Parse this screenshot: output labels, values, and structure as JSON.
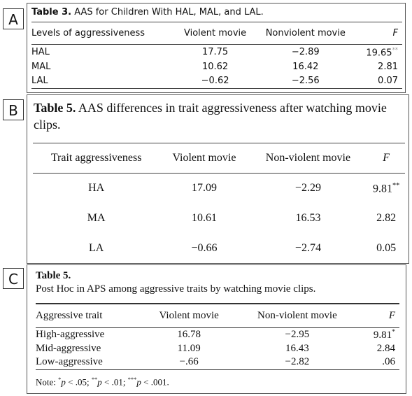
{
  "panels": [
    {
      "label": "A",
      "title_bold": "Table 3.",
      "title": "AAS for Children With HAL, MAL, and LAL.",
      "header": [
        "Levels of aggressiveness",
        "Violent movie",
        "Nonviolent movie",
        "F"
      ],
      "rows": [
        [
          "HAL",
          "17.75",
          "−2.89",
          {
            "text": "19.65",
            "sup": "**"
          }
        ],
        [
          "MAL",
          "10.62",
          "16.42",
          "2.81"
        ],
        [
          "LAL",
          "−0.62",
          "−2.56",
          "0.07"
        ]
      ]
    },
    {
      "label": "B",
      "title_bold": "Table 5.",
      "title": "AAS differences in trait aggressiveness after watching movie clips.",
      "header": [
        "Trait aggressiveness",
        "Violent movie",
        "Non-violent movie",
        "F"
      ],
      "rows": [
        [
          "HA",
          "17.09",
          "−2.29",
          {
            "text": "9.81",
            "sup": "**"
          }
        ],
        [
          "MA",
          "10.61",
          "16.53",
          "2.82"
        ],
        [
          "LA",
          "−0.66",
          "−2.74",
          "0.05"
        ]
      ]
    },
    {
      "label": "C",
      "title_bold": "Table 5.",
      "title": "Post Hoc in APS among aggressive traits by watching movie clips.",
      "header": [
        "Aggressive trait",
        "Violent movie",
        "Non-violent movie",
        "F"
      ],
      "rows": [
        [
          "High-aggressive",
          "16.78",
          "−2.95",
          {
            "text": "9.81",
            "sup": "*"
          }
        ],
        [
          "Mid-aggressive",
          "11.09",
          "16.43",
          "2.84"
        ],
        [
          "Low-aggressive",
          "−.66",
          "−2.82",
          ".06"
        ]
      ],
      "note": [
        {
          "t": "Note: ",
          "style": "plain"
        },
        {
          "t": "*",
          "style": "sup"
        },
        {
          "t": "p",
          "style": "i"
        },
        {
          "t": " < .05; ",
          "style": "plain"
        },
        {
          "t": "**",
          "style": "sup"
        },
        {
          "t": "p",
          "style": "i"
        },
        {
          "t": " < .01; ",
          "style": "plain"
        },
        {
          "t": "***",
          "style": "sup"
        },
        {
          "t": "p",
          "style": "i"
        },
        {
          "t": " < .001.",
          "style": "plain"
        }
      ]
    }
  ]
}
